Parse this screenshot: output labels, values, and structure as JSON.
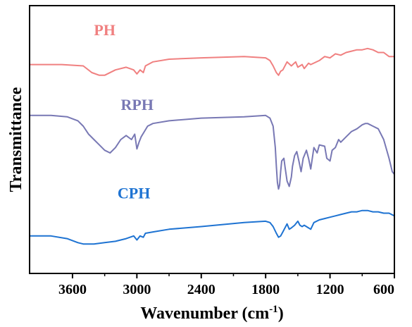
{
  "chart_data": {
    "type": "line",
    "xlabel": "Wavenumber (cm",
    "xlabel_sup": "-1",
    "xlabel_close": ")",
    "ylabel": "Transmittance",
    "x_reversed": true,
    "xlim": [
      4000,
      600
    ],
    "ylim": [
      0,
      100
    ],
    "x_ticks": [
      3600,
      3000,
      2400,
      1800,
      1200,
      600
    ],
    "x_tick_labels": [
      "3600",
      "3000",
      "2400",
      "1800",
      "1200",
      "600"
    ],
    "grid": false,
    "legend": "inline labels",
    "series": [
      {
        "name": "PH",
        "color": "#f08080",
        "label_anchor": [
          3400,
          89
        ],
        "x": [
          4000,
          3700,
          3500,
          3420,
          3350,
          3300,
          3200,
          3100,
          3030,
          3000,
          2970,
          2940,
          2920,
          2850,
          2700,
          2400,
          2000,
          1800,
          1760,
          1730,
          1700,
          1680,
          1660,
          1640,
          1600,
          1560,
          1520,
          1500,
          1460,
          1440,
          1400,
          1380,
          1300,
          1250,
          1200,
          1150,
          1100,
          1050,
          1000,
          950,
          900,
          850,
          800,
          750,
          700,
          650,
          600
        ],
        "y": [
          78,
          78,
          77.5,
          75,
          74,
          74,
          76,
          77,
          76,
          74.5,
          76,
          75,
          77.5,
          79,
          80,
          80.5,
          81,
          80.5,
          79.5,
          77.5,
          75,
          74,
          75.5,
          76,
          79,
          77.5,
          79,
          77,
          78,
          76.5,
          78.5,
          78,
          79.5,
          81,
          80.5,
          82,
          81.5,
          82.5,
          83,
          83.5,
          83.5,
          84,
          83.5,
          82.5,
          82.5,
          81,
          81
        ]
      },
      {
        "name": "RPH",
        "color": "#7878b4",
        "label_anchor": [
          3150,
          61
        ],
        "x": [
          4000,
          3800,
          3650,
          3550,
          3500,
          3450,
          3400,
          3350,
          3300,
          3250,
          3200,
          3150,
          3100,
          3050,
          3020,
          3000,
          2980,
          2960,
          2930,
          2900,
          2850,
          2700,
          2400,
          2000,
          1800,
          1760,
          1730,
          1710,
          1700,
          1690,
          1680,
          1670,
          1660,
          1650,
          1630,
          1620,
          1600,
          1580,
          1560,
          1550,
          1530,
          1510,
          1490,
          1470,
          1450,
          1420,
          1400,
          1380,
          1350,
          1320,
          1300,
          1250,
          1230,
          1200,
          1180,
          1150,
          1120,
          1100,
          1050,
          1000,
          950,
          900,
          870,
          850,
          800,
          750,
          700,
          650,
          620,
          600
        ],
        "y": [
          59,
          59,
          58.5,
          57,
          55,
          52,
          50,
          48,
          46,
          45,
          47,
          50,
          51.5,
          50,
          52,
          46.5,
          49,
          51,
          53,
          55,
          56,
          57,
          58,
          58.5,
          59,
          58,
          55,
          47,
          40,
          34,
          31.5,
          33,
          38,
          42,
          43,
          40,
          34.5,
          32.5,
          36,
          40,
          44,
          45.5,
          42,
          38,
          43,
          46,
          43,
          39,
          47,
          45,
          48,
          47.5,
          43,
          42,
          46,
          47,
          50,
          49,
          51,
          53,
          54,
          55.5,
          56,
          56,
          55,
          54,
          50,
          43,
          38,
          37
        ]
      },
      {
        "name": "CPH",
        "color": "#1e73d2",
        "label_anchor": [
          3180,
          28
        ],
        "x": [
          4000,
          3800,
          3650,
          3550,
          3500,
          3450,
          3400,
          3300,
          3200,
          3100,
          3030,
          3000,
          2970,
          2940,
          2920,
          2850,
          2700,
          2400,
          2000,
          1800,
          1760,
          1730,
          1700,
          1680,
          1660,
          1640,
          1600,
          1580,
          1560,
          1530,
          1500,
          1480,
          1460,
          1440,
          1400,
          1380,
          1350,
          1300,
          1250,
          1200,
          1150,
          1100,
          1050,
          1000,
          950,
          900,
          850,
          800,
          750,
          700,
          650,
          600
        ],
        "y": [
          14,
          14,
          13,
          11.5,
          11,
          11,
          11,
          11.5,
          12,
          13,
          14,
          12.5,
          14,
          13.5,
          15,
          15.5,
          16.5,
          17.5,
          19,
          19.5,
          19,
          17.5,
          15,
          13.5,
          14,
          15.5,
          18.5,
          16.5,
          17,
          18,
          19.5,
          18,
          17.5,
          18,
          17,
          16.5,
          19,
          20,
          20.5,
          21,
          21.5,
          22,
          22.5,
          23,
          23,
          23.5,
          23.5,
          23,
          23,
          22.5,
          22.5,
          21.5
        ]
      }
    ]
  }
}
